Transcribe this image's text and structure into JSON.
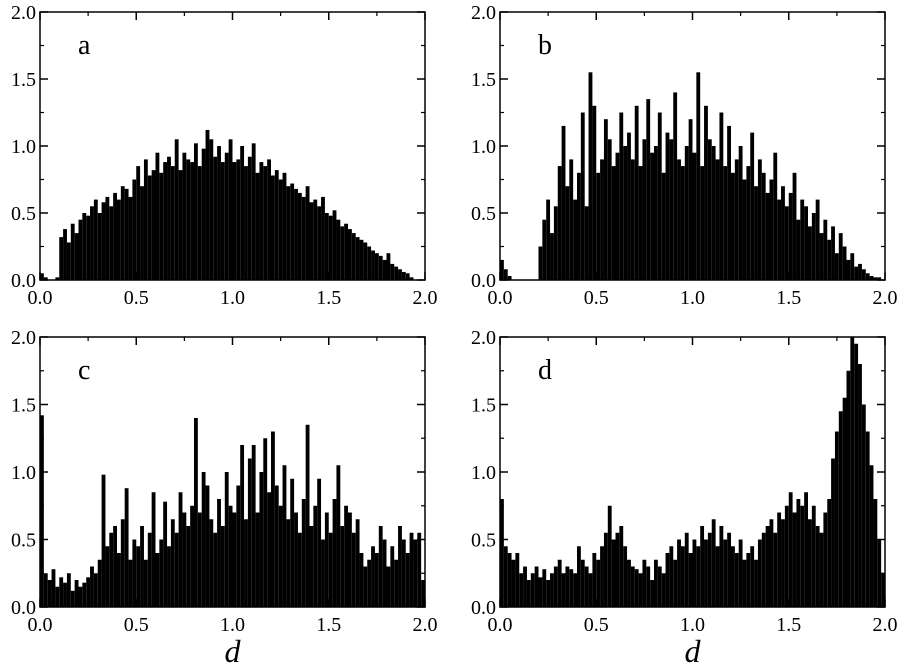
{
  "chart_data": [
    {
      "type": "bar",
      "panel_label": "a",
      "xlabel": "",
      "ylabel": "",
      "xlim": [
        0.0,
        2.0
      ],
      "ylim": [
        0.0,
        2.0
      ],
      "x_ticks": [
        "0.0",
        "0.5",
        "1.0",
        "1.5",
        "2.0"
      ],
      "y_ticks": [
        "0.0",
        "0.5",
        "1.0",
        "1.5",
        "2.0"
      ],
      "bin_width": 0.01,
      "x": [
        0.0,
        0.02,
        0.04,
        0.06,
        0.08,
        0.1,
        0.12,
        0.14,
        0.16,
        0.18,
        0.2,
        0.22,
        0.24,
        0.26,
        0.28,
        0.3,
        0.32,
        0.34,
        0.36,
        0.38,
        0.4,
        0.42,
        0.44,
        0.46,
        0.48,
        0.5,
        0.52,
        0.54,
        0.56,
        0.58,
        0.6,
        0.62,
        0.64,
        0.66,
        0.68,
        0.7,
        0.72,
        0.74,
        0.76,
        0.78,
        0.8,
        0.82,
        0.84,
        0.86,
        0.88,
        0.9,
        0.92,
        0.94,
        0.96,
        0.98,
        1.0,
        1.02,
        1.04,
        1.06,
        1.08,
        1.1,
        1.12,
        1.14,
        1.16,
        1.18,
        1.2,
        1.22,
        1.24,
        1.26,
        1.28,
        1.3,
        1.32,
        1.34,
        1.36,
        1.38,
        1.4,
        1.42,
        1.44,
        1.46,
        1.48,
        1.5,
        1.52,
        1.54,
        1.56,
        1.58,
        1.6,
        1.62,
        1.64,
        1.66,
        1.68,
        1.7,
        1.72,
        1.74,
        1.76,
        1.78,
        1.8,
        1.82,
        1.84,
        1.86,
        1.88,
        1.9,
        1.92,
        1.94,
        1.96,
        1.98
      ],
      "values": [
        0.05,
        0.02,
        0.0,
        0.0,
        0.02,
        0.32,
        0.38,
        0.28,
        0.42,
        0.35,
        0.45,
        0.5,
        0.48,
        0.55,
        0.6,
        0.5,
        0.58,
        0.62,
        0.55,
        0.65,
        0.6,
        0.7,
        0.68,
        0.62,
        0.75,
        0.85,
        0.7,
        0.9,
        0.78,
        0.82,
        0.95,
        0.8,
        0.88,
        0.92,
        0.85,
        1.05,
        0.82,
        0.95,
        0.9,
        0.88,
        1.02,
        0.85,
        0.98,
        1.12,
        1.05,
        0.92,
        1.0,
        0.88,
        0.95,
        1.05,
        0.88,
        0.9,
        1.0,
        0.85,
        0.92,
        1.02,
        0.8,
        0.88,
        0.85,
        0.9,
        0.78,
        0.82,
        0.75,
        0.8,
        0.7,
        0.72,
        0.68,
        0.65,
        0.62,
        0.7,
        0.58,
        0.6,
        0.55,
        0.62,
        0.5,
        0.48,
        0.52,
        0.45,
        0.4,
        0.42,
        0.38,
        0.35,
        0.32,
        0.3,
        0.28,
        0.25,
        0.22,
        0.2,
        0.18,
        0.15,
        0.2,
        0.12,
        0.1,
        0.08,
        0.06,
        0.05,
        0.02,
        0.0,
        0.0,
        0.0
      ]
    },
    {
      "type": "bar",
      "panel_label": "b",
      "xlabel": "",
      "ylabel": "",
      "xlim": [
        0.0,
        2.0
      ],
      "ylim": [
        0.0,
        2.0
      ],
      "x_ticks": [
        "0.0",
        "0.5",
        "1.0",
        "1.5",
        "2.0"
      ],
      "y_ticks": [
        "0.0",
        "0.5",
        "1.0",
        "1.5",
        "2.0"
      ],
      "bin_width": 0.01,
      "x": [
        0.0,
        0.02,
        0.04,
        0.06,
        0.08,
        0.1,
        0.12,
        0.14,
        0.16,
        0.18,
        0.2,
        0.22,
        0.24,
        0.26,
        0.28,
        0.3,
        0.32,
        0.34,
        0.36,
        0.38,
        0.4,
        0.42,
        0.44,
        0.46,
        0.48,
        0.5,
        0.52,
        0.54,
        0.56,
        0.58,
        0.6,
        0.62,
        0.64,
        0.66,
        0.68,
        0.7,
        0.72,
        0.74,
        0.76,
        0.78,
        0.8,
        0.82,
        0.84,
        0.86,
        0.88,
        0.9,
        0.92,
        0.94,
        0.96,
        0.98,
        1.0,
        1.02,
        1.04,
        1.06,
        1.08,
        1.1,
        1.12,
        1.14,
        1.16,
        1.18,
        1.2,
        1.22,
        1.24,
        1.26,
        1.28,
        1.3,
        1.32,
        1.34,
        1.36,
        1.38,
        1.4,
        1.42,
        1.44,
        1.46,
        1.48,
        1.5,
        1.52,
        1.54,
        1.56,
        1.58,
        1.6,
        1.62,
        1.64,
        1.66,
        1.68,
        1.7,
        1.72,
        1.74,
        1.76,
        1.78,
        1.8,
        1.82,
        1.84,
        1.86,
        1.88,
        1.9,
        1.92,
        1.94,
        1.96,
        1.98
      ],
      "values": [
        0.15,
        0.08,
        0.03,
        0.0,
        0.0,
        0.0,
        0.0,
        0.0,
        0.0,
        0.0,
        0.25,
        0.45,
        0.6,
        0.35,
        0.55,
        0.85,
        1.15,
        0.7,
        0.9,
        0.6,
        0.8,
        1.25,
        0.55,
        1.55,
        1.3,
        0.8,
        0.9,
        1.2,
        1.05,
        0.85,
        0.95,
        1.25,
        1.0,
        1.1,
        0.9,
        1.3,
        0.85,
        1.05,
        1.35,
        0.95,
        1.0,
        1.25,
        0.8,
        1.1,
        1.05,
        1.4,
        0.9,
        0.85,
        1.0,
        1.2,
        0.95,
        1.55,
        0.85,
        1.3,
        1.05,
        1.0,
        0.9,
        1.25,
        0.85,
        1.15,
        0.8,
        0.9,
        1.0,
        0.75,
        0.85,
        1.1,
        0.7,
        0.9,
        0.8,
        0.65,
        0.75,
        0.95,
        0.6,
        0.7,
        0.55,
        0.65,
        0.8,
        0.45,
        0.6,
        0.55,
        0.4,
        0.5,
        0.6,
        0.35,
        0.45,
        0.3,
        0.4,
        0.2,
        0.35,
        0.25,
        0.15,
        0.2,
        0.1,
        0.12,
        0.08,
        0.05,
        0.03,
        0.02,
        0.02,
        0.0
      ]
    },
    {
      "type": "bar",
      "panel_label": "c",
      "xlabel": "d",
      "ylabel": "",
      "xlim": [
        0.0,
        2.0
      ],
      "ylim": [
        0.0,
        2.0
      ],
      "x_ticks": [
        "0.0",
        "0.5",
        "1.0",
        "1.5",
        "2.0"
      ],
      "y_ticks": [
        "0.0",
        "0.5",
        "1.0",
        "1.5",
        "2.0"
      ],
      "bin_width": 0.01,
      "x": [
        0.0,
        0.02,
        0.04,
        0.06,
        0.08,
        0.1,
        0.12,
        0.14,
        0.16,
        0.18,
        0.2,
        0.22,
        0.24,
        0.26,
        0.28,
        0.3,
        0.32,
        0.34,
        0.36,
        0.38,
        0.4,
        0.42,
        0.44,
        0.46,
        0.48,
        0.5,
        0.52,
        0.54,
        0.56,
        0.58,
        0.6,
        0.62,
        0.64,
        0.66,
        0.68,
        0.7,
        0.72,
        0.74,
        0.76,
        0.78,
        0.8,
        0.82,
        0.84,
        0.86,
        0.88,
        0.9,
        0.92,
        0.94,
        0.96,
        0.98,
        1.0,
        1.02,
        1.04,
        1.06,
        1.08,
        1.1,
        1.12,
        1.14,
        1.16,
        1.18,
        1.2,
        1.22,
        1.24,
        1.26,
        1.28,
        1.3,
        1.32,
        1.34,
        1.36,
        1.38,
        1.4,
        1.42,
        1.44,
        1.46,
        1.48,
        1.5,
        1.52,
        1.54,
        1.56,
        1.58,
        1.6,
        1.62,
        1.64,
        1.66,
        1.68,
        1.7,
        1.72,
        1.74,
        1.76,
        1.78,
        1.8,
        1.82,
        1.84,
        1.86,
        1.88,
        1.9,
        1.92,
        1.94,
        1.96,
        1.98
      ],
      "values": [
        1.42,
        0.25,
        0.2,
        0.28,
        0.15,
        0.22,
        0.18,
        0.25,
        0.12,
        0.2,
        0.15,
        0.18,
        0.22,
        0.3,
        0.25,
        0.35,
        0.98,
        0.45,
        0.55,
        0.6,
        0.4,
        0.65,
        0.88,
        0.35,
        0.5,
        0.45,
        0.6,
        0.35,
        0.55,
        0.85,
        0.4,
        0.5,
        0.78,
        0.45,
        0.65,
        0.55,
        0.85,
        0.7,
        0.6,
        0.75,
        1.4,
        0.7,
        1.0,
        0.9,
        0.65,
        0.55,
        0.8,
        0.6,
        1.0,
        0.75,
        0.7,
        0.9,
        1.2,
        0.65,
        1.1,
        1.2,
        0.7,
        1.0,
        1.25,
        0.85,
        1.3,
        0.9,
        0.75,
        1.05,
        0.65,
        0.95,
        0.7,
        0.55,
        0.8,
        1.35,
        0.6,
        0.75,
        0.95,
        0.5,
        0.7,
        0.55,
        0.8,
        1.05,
        0.6,
        0.75,
        0.7,
        0.55,
        0.65,
        0.4,
        0.3,
        0.35,
        0.45,
        0.4,
        0.6,
        0.5,
        0.3,
        0.45,
        0.35,
        0.6,
        0.5,
        0.4,
        0.55,
        0.5,
        0.55,
        0.2
      ]
    },
    {
      "type": "bar",
      "panel_label": "d",
      "xlabel": "d",
      "ylabel": "",
      "xlim": [
        0.0,
        2.0
      ],
      "ylim": [
        0.0,
        2.0
      ],
      "x_ticks": [
        "0.0",
        "0.5",
        "1.0",
        "1.5",
        "2.0"
      ],
      "y_ticks": [
        "0.0",
        "0.5",
        "1.0",
        "1.5",
        "2.0"
      ],
      "bin_width": 0.01,
      "x": [
        0.0,
        0.02,
        0.04,
        0.06,
        0.08,
        0.1,
        0.12,
        0.14,
        0.16,
        0.18,
        0.2,
        0.22,
        0.24,
        0.26,
        0.28,
        0.3,
        0.32,
        0.34,
        0.36,
        0.38,
        0.4,
        0.42,
        0.44,
        0.46,
        0.48,
        0.5,
        0.52,
        0.54,
        0.56,
        0.58,
        0.6,
        0.62,
        0.64,
        0.66,
        0.68,
        0.7,
        0.72,
        0.74,
        0.76,
        0.78,
        0.8,
        0.82,
        0.84,
        0.86,
        0.88,
        0.9,
        0.92,
        0.94,
        0.96,
        0.98,
        1.0,
        1.02,
        1.04,
        1.06,
        1.08,
        1.1,
        1.12,
        1.14,
        1.16,
        1.18,
        1.2,
        1.22,
        1.24,
        1.26,
        1.28,
        1.3,
        1.32,
        1.34,
        1.36,
        1.38,
        1.4,
        1.42,
        1.44,
        1.46,
        1.48,
        1.5,
        1.52,
        1.54,
        1.56,
        1.58,
        1.6,
        1.62,
        1.64,
        1.66,
        1.68,
        1.7,
        1.72,
        1.74,
        1.76,
        1.78,
        1.8,
        1.82,
        1.84,
        1.86,
        1.88,
        1.9,
        1.92,
        1.94,
        1.96,
        1.98
      ],
      "values": [
        0.8,
        0.45,
        0.4,
        0.35,
        0.4,
        0.25,
        0.3,
        0.2,
        0.25,
        0.3,
        0.22,
        0.28,
        0.2,
        0.25,
        0.3,
        0.35,
        0.25,
        0.3,
        0.28,
        0.25,
        0.45,
        0.35,
        0.3,
        0.25,
        0.4,
        0.35,
        0.45,
        0.55,
        0.75,
        0.5,
        0.55,
        0.6,
        0.45,
        0.35,
        0.3,
        0.28,
        0.25,
        0.35,
        0.3,
        0.2,
        0.35,
        0.3,
        0.25,
        0.4,
        0.45,
        0.35,
        0.5,
        0.45,
        0.55,
        0.4,
        0.5,
        0.45,
        0.6,
        0.5,
        0.55,
        0.65,
        0.45,
        0.6,
        0.5,
        0.55,
        0.45,
        0.4,
        0.5,
        0.35,
        0.4,
        0.45,
        0.35,
        0.5,
        0.55,
        0.6,
        0.65,
        0.55,
        0.7,
        0.65,
        0.75,
        0.85,
        0.7,
        0.8,
        0.75,
        0.85,
        0.65,
        0.75,
        0.6,
        0.55,
        0.7,
        0.8,
        1.1,
        1.3,
        1.45,
        1.55,
        1.75,
        2.0,
        1.95,
        1.8,
        1.5,
        1.3,
        1.05,
        0.8,
        0.5,
        0.25
      ]
    }
  ]
}
